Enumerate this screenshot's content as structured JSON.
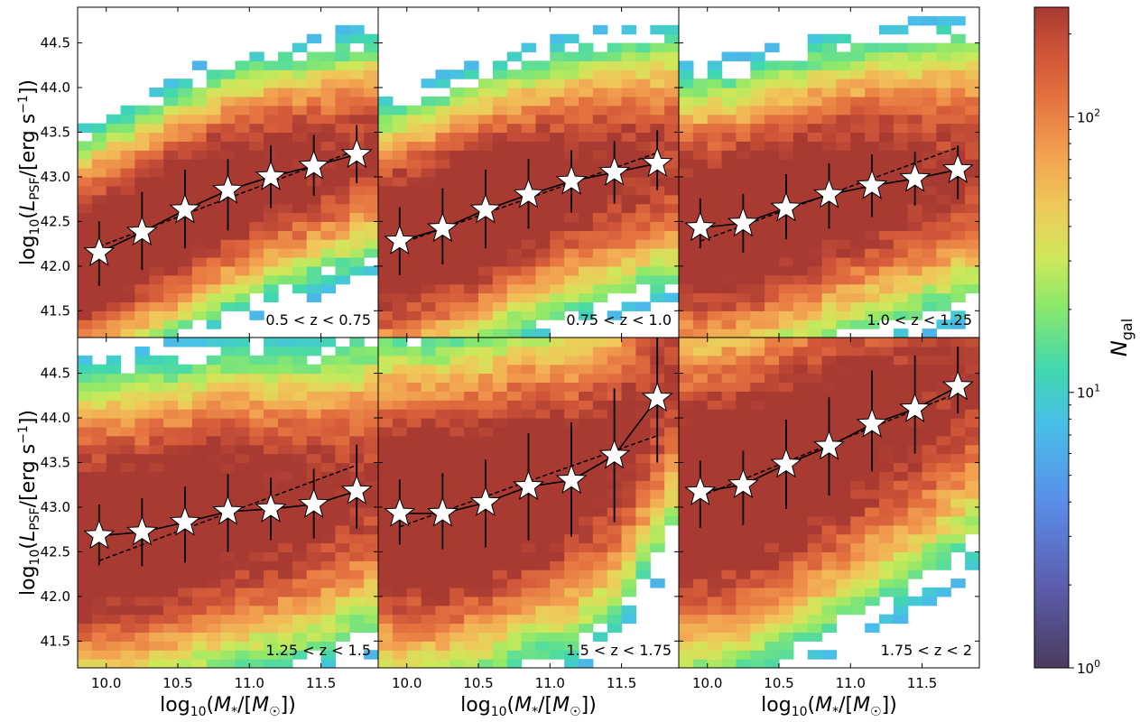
{
  "chart_data": {
    "type": "heatmap",
    "layout": "2x3 grid, shared axes",
    "xlabel": "log10(M*/[M☉])",
    "ylabel": "log10(LPSF/[erg s−1])",
    "xlim": [
      9.8,
      11.9
    ],
    "ylim": [
      41.2,
      44.9
    ],
    "x_ticks": [
      "10.0",
      "10.5",
      "11.0",
      "11.5"
    ],
    "y_ticks": [
      "41.5",
      "42.0",
      "42.5",
      "43.0",
      "43.5",
      "44.0",
      "44.5"
    ],
    "colorbar": {
      "label": "Ngal",
      "scale": "log",
      "min": 1,
      "max": 250,
      "ticks": [
        {
          "base": "10",
          "exp": "0",
          "value": 1
        },
        {
          "base": "10",
          "exp": "1",
          "value": 10
        },
        {
          "base": "10",
          "exp": "2",
          "value": 100
        }
      ],
      "colormap": "turbo-like"
    },
    "panels": [
      {
        "label": "0.5 < z < 0.75",
        "stars": [
          {
            "x": 9.95,
            "y": 42.15,
            "err_lo": 0.37,
            "err_hi": 0.35
          },
          {
            "x": 10.25,
            "y": 42.38,
            "err_lo": 0.42,
            "err_hi": 0.45
          },
          {
            "x": 10.55,
            "y": 42.63,
            "err_lo": 0.43,
            "err_hi": 0.45
          },
          {
            "x": 10.85,
            "y": 42.85,
            "err_lo": 0.45,
            "err_hi": 0.35
          },
          {
            "x": 11.15,
            "y": 43.0,
            "err_lo": 0.35,
            "err_hi": 0.35
          },
          {
            "x": 11.45,
            "y": 43.12,
            "err_lo": 0.33,
            "err_hi": 0.35
          },
          {
            "x": 11.75,
            "y": 43.25,
            "err_lo": 0.32,
            "err_hi": 0.33
          }
        ],
        "fit_solid": [
          [
            9.95,
            42.22
          ],
          [
            11.75,
            43.3
          ]
        ],
        "fit_dashed": [
          [
            9.95,
            42.22
          ],
          [
            11.75,
            43.3
          ]
        ]
      },
      {
        "label": "0.75 < z < 1.0",
        "stars": [
          {
            "x": 9.95,
            "y": 42.28,
            "err_lo": 0.38,
            "err_hi": 0.38
          },
          {
            "x": 10.25,
            "y": 42.42,
            "err_lo": 0.4,
            "err_hi": 0.45
          },
          {
            "x": 10.55,
            "y": 42.63,
            "err_lo": 0.43,
            "err_hi": 0.45
          },
          {
            "x": 10.85,
            "y": 42.8,
            "err_lo": 0.38,
            "err_hi": 0.4
          },
          {
            "x": 11.15,
            "y": 42.95,
            "err_lo": 0.35,
            "err_hi": 0.35
          },
          {
            "x": 11.45,
            "y": 43.05,
            "err_lo": 0.35,
            "err_hi": 0.35
          },
          {
            "x": 11.75,
            "y": 43.15,
            "err_lo": 0.3,
            "err_hi": 0.37
          }
        ],
        "fit_solid": [
          [
            9.95,
            42.3
          ],
          [
            11.75,
            43.2
          ]
        ],
        "fit_dashed": [
          [
            9.95,
            42.25
          ],
          [
            11.75,
            43.27
          ]
        ]
      },
      {
        "label": "1.0 < z < 1.25",
        "stars": [
          {
            "x": 9.95,
            "y": 42.43,
            "err_lo": 0.23,
            "err_hi": 0.33
          },
          {
            "x": 10.25,
            "y": 42.48,
            "err_lo": 0.33,
            "err_hi": 0.33
          },
          {
            "x": 10.55,
            "y": 42.65,
            "err_lo": 0.35,
            "err_hi": 0.38
          },
          {
            "x": 10.85,
            "y": 42.8,
            "err_lo": 0.38,
            "err_hi": 0.35
          },
          {
            "x": 11.15,
            "y": 42.9,
            "err_lo": 0.35,
            "err_hi": 0.35
          },
          {
            "x": 11.45,
            "y": 42.98,
            "err_lo": 0.3,
            "err_hi": 0.3
          },
          {
            "x": 11.75,
            "y": 43.08,
            "err_lo": 0.33,
            "err_hi": 0.27
          }
        ],
        "fit_solid": [
          [
            9.95,
            42.42
          ],
          [
            11.75,
            43.08
          ]
        ],
        "fit_dashed": [
          [
            9.95,
            42.28
          ],
          [
            11.75,
            43.33
          ]
        ]
      },
      {
        "label": "1.25 < z < 1.5",
        "stars": [
          {
            "x": 9.95,
            "y": 42.68,
            "err_lo": 0.33,
            "err_hi": 0.35
          },
          {
            "x": 10.25,
            "y": 42.72,
            "err_lo": 0.38,
            "err_hi": 0.38
          },
          {
            "x": 10.55,
            "y": 42.83,
            "err_lo": 0.45,
            "err_hi": 0.4
          },
          {
            "x": 10.85,
            "y": 42.95,
            "err_lo": 0.45,
            "err_hi": 0.42
          },
          {
            "x": 11.15,
            "y": 42.98,
            "err_lo": 0.35,
            "err_hi": 0.35
          },
          {
            "x": 11.45,
            "y": 43.03,
            "err_lo": 0.38,
            "err_hi": 0.4
          },
          {
            "x": 11.75,
            "y": 43.18,
            "err_lo": 0.42,
            "err_hi": 0.52
          }
        ],
        "fit_solid": [
          [
            9.95,
            42.68
          ],
          [
            11.75,
            43.18
          ]
        ],
        "fit_dashed": [
          [
            9.95,
            42.4
          ],
          [
            11.75,
            43.47
          ]
        ]
      },
      {
        "label": "1.5 < z < 1.75",
        "stars": [
          {
            "x": 9.95,
            "y": 42.93,
            "err_lo": 0.35,
            "err_hi": 0.38
          },
          {
            "x": 10.25,
            "y": 42.93,
            "err_lo": 0.4,
            "err_hi": 0.45
          },
          {
            "x": 10.55,
            "y": 43.05,
            "err_lo": 0.5,
            "err_hi": 0.48
          },
          {
            "x": 10.85,
            "y": 43.23,
            "err_lo": 0.6,
            "err_hi": 0.6
          },
          {
            "x": 11.15,
            "y": 43.3,
            "err_lo": 0.63,
            "err_hi": 0.65
          },
          {
            "x": 11.45,
            "y": 43.58,
            "err_lo": 0.75,
            "err_hi": 0.75
          },
          {
            "x": 11.75,
            "y": 44.22,
            "err_lo": 0.72,
            "err_hi": 0.75
          }
        ],
        "fit_solid": [
          [
            9.95,
            42.83
          ],
          [
            11.75,
            43.85
          ]
        ],
        "fit_dashed": [
          [
            9.95,
            42.78
          ],
          [
            11.75,
            43.8
          ]
        ]
      },
      {
        "label": "1.75 < z < 2",
        "stars": [
          {
            "x": 9.95,
            "y": 43.17,
            "err_lo": 0.4,
            "err_hi": 0.35
          },
          {
            "x": 10.25,
            "y": 43.25,
            "err_lo": 0.45,
            "err_hi": 0.38
          },
          {
            "x": 10.55,
            "y": 43.48,
            "err_lo": 0.5,
            "err_hi": 0.5
          },
          {
            "x": 10.85,
            "y": 43.68,
            "err_lo": 0.55,
            "err_hi": 0.55
          },
          {
            "x": 11.15,
            "y": 43.93,
            "err_lo": 0.53,
            "err_hi": 0.6
          },
          {
            "x": 11.45,
            "y": 44.1,
            "err_lo": 0.5,
            "err_hi": 0.6
          },
          {
            "x": 11.75,
            "y": 44.35,
            "err_lo": 0.3,
            "err_hi": 0.45
          }
        ],
        "fit_solid": [
          [
            9.95,
            43.12
          ],
          [
            11.75,
            44.32
          ]
        ],
        "fit_dashed": [
          [
            9.95,
            43.12
          ],
          [
            11.75,
            44.28
          ]
        ]
      }
    ]
  }
}
